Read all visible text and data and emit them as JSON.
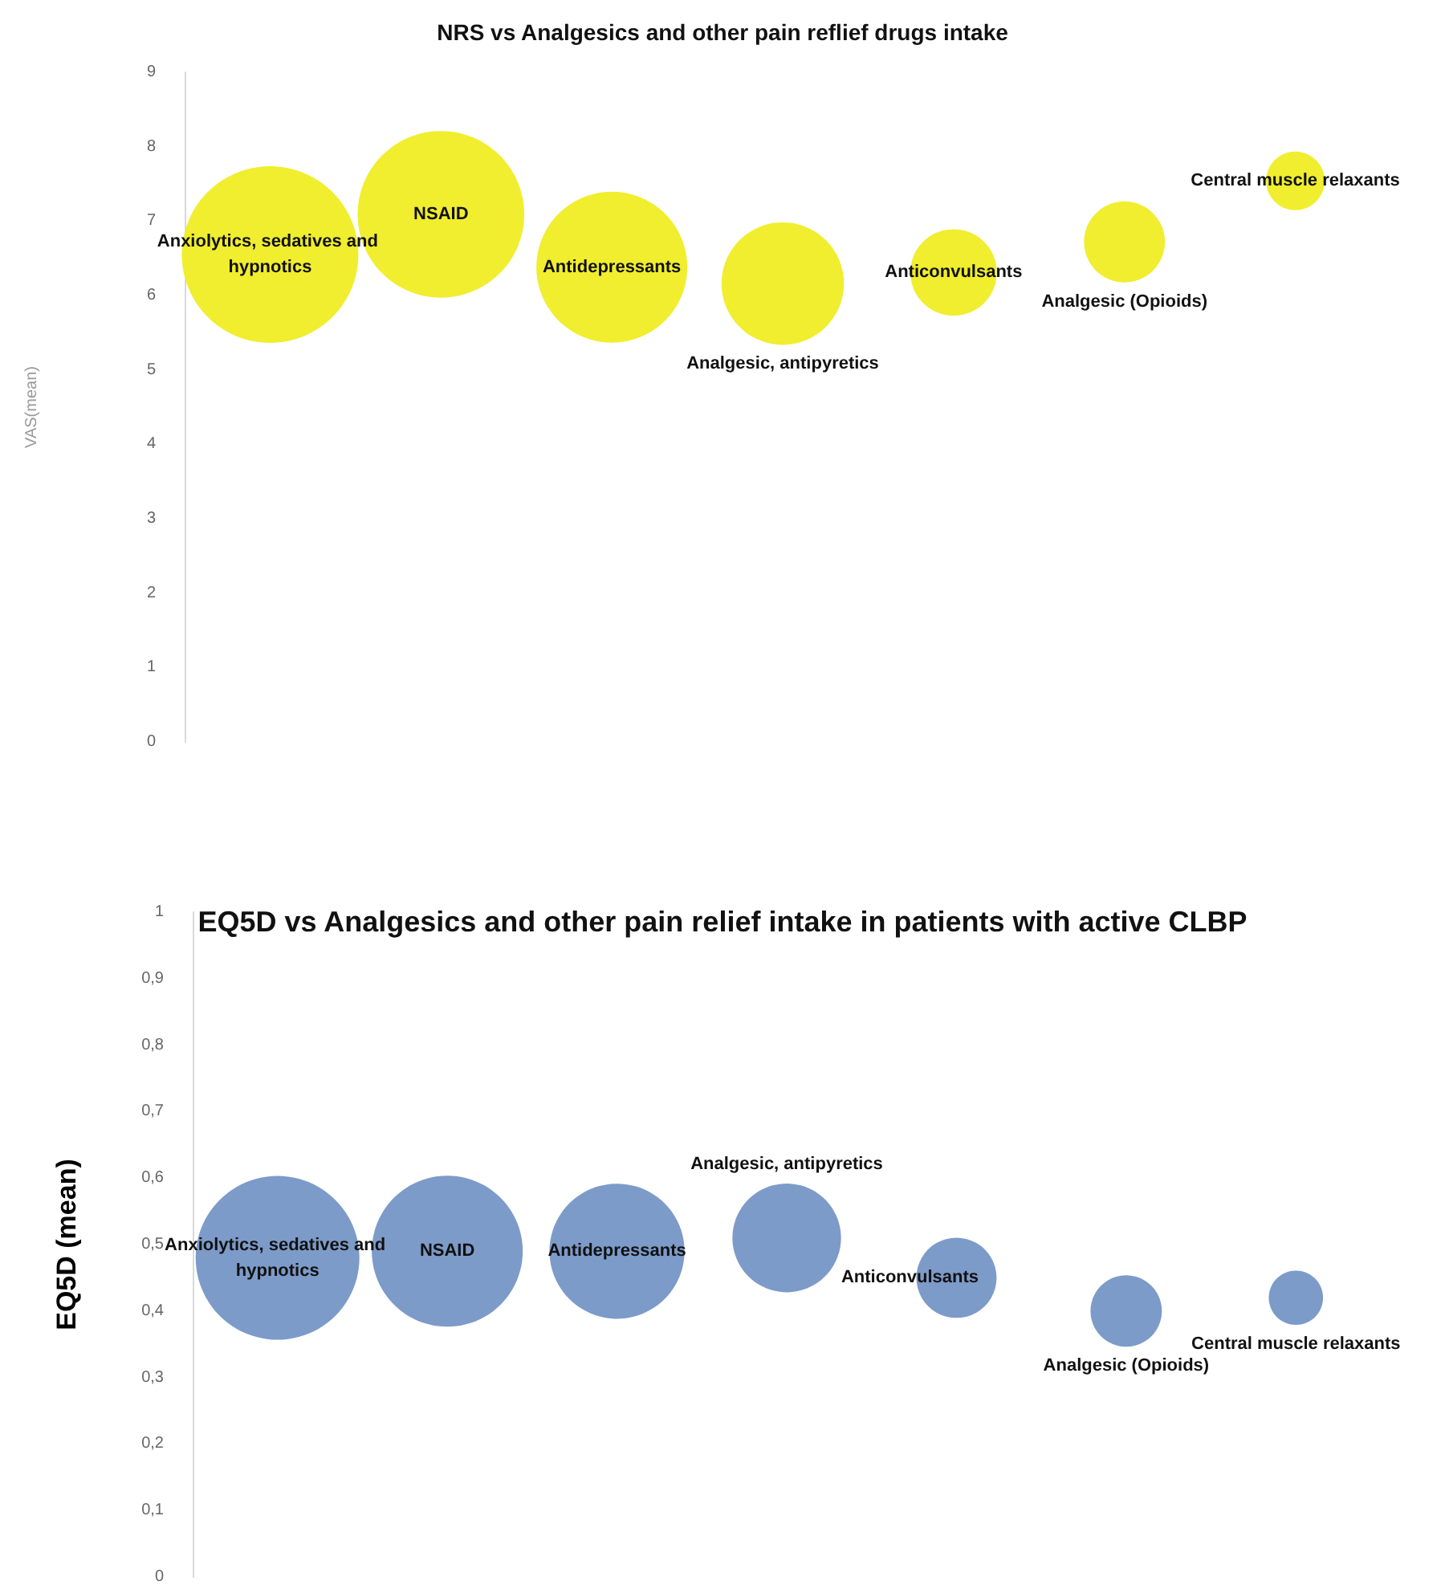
{
  "chart_data": [
    {
      "type": "bubble",
      "title": "NRS vs Analgesics and other pain reflief drugs intake",
      "ylabel": "VAS(mean)",
      "categories": [
        "Anxiolytics, sedatives and hypnotics",
        "NSAID",
        "Antidepressants",
        "Analgesic, antipyretics",
        "Anticonvulsants",
        "Analgesic (Opioids)",
        "Central muscle relaxants"
      ],
      "ylim": [
        0,
        9
      ],
      "yticks": [
        0,
        1,
        2,
        3,
        4,
        5,
        6,
        7,
        8,
        9
      ],
      "grid": false,
      "series": [
        {
          "color": "#f0ee2e",
          "values": [
            6.55,
            7.09,
            6.38,
            6.16,
            6.31,
            6.72,
            7.54
          ],
          "sizes": [
            1,
            0.89,
            0.73,
            0.48,
            0.24,
            0.21,
            0.11
          ]
        }
      ]
    },
    {
      "type": "bubble",
      "title": "EQ5D vs Analgesics and other pain relief intake in patients with active CLBP",
      "ylabel": "EQ5D (mean)",
      "categories": [
        "Anxiolytics, sedatives and hypnotics",
        "NSAID",
        "Antidepressants",
        "Analgesic, antipyretics",
        "Anticonvulsants",
        "Analgesic (Opioids)",
        "Central muscle relaxants"
      ],
      "ylim": [
        0,
        1
      ],
      "yticks": [
        0,
        {
          "value": 0.1,
          "label": "0,1"
        },
        {
          "value": 0.2,
          "label": "0,2"
        },
        {
          "value": 0.3,
          "label": "0,3"
        },
        {
          "value": 0.4,
          "label": "0,4"
        },
        {
          "value": 0.5,
          "label": "0,5"
        },
        {
          "value": 0.6,
          "label": "0,6"
        },
        {
          "value": 0.7,
          "label": "0,7"
        },
        {
          "value": 0.8,
          "label": "0,8"
        },
        {
          "value": 0.9,
          "label": "0,9"
        },
        1
      ],
      "grid": false,
      "series": [
        {
          "color": "#7d9bc9",
          "values": [
            0.48,
            0.49,
            0.49,
            0.51,
            0.45,
            0.4,
            0.42
          ],
          "sizes": [
            1,
            0.85,
            0.68,
            0.44,
            0.24,
            0.19,
            0.11
          ]
        }
      ]
    }
  ]
}
